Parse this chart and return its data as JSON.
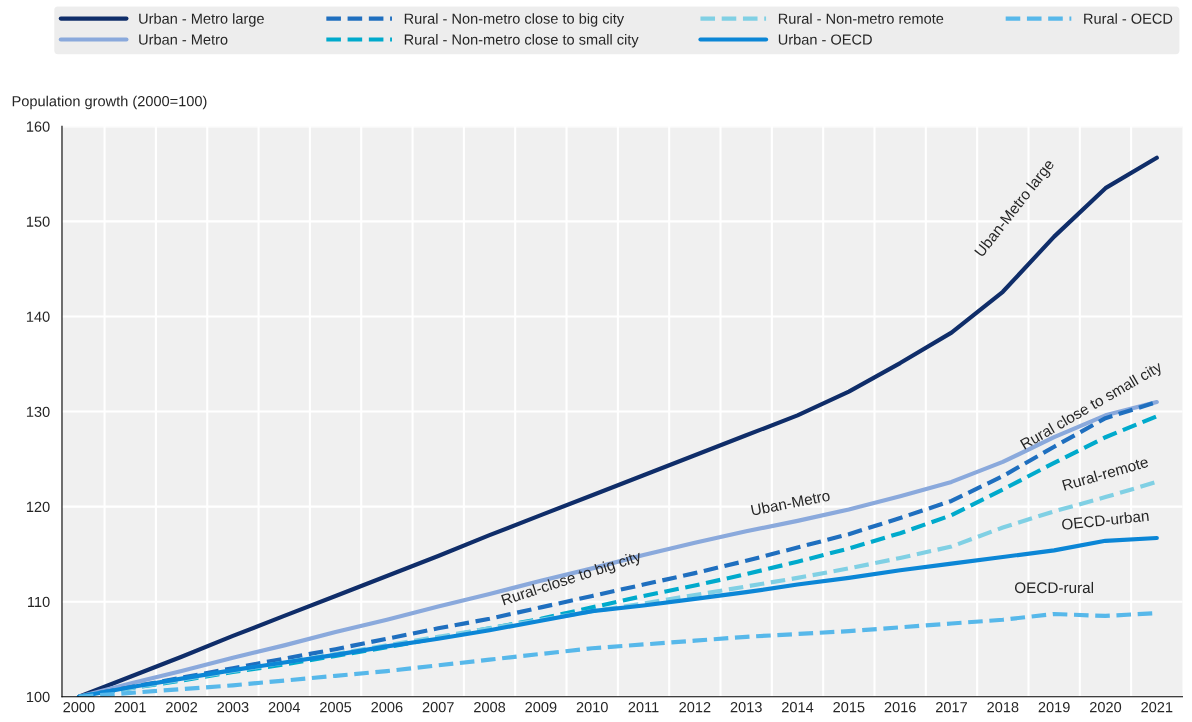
{
  "chart_data": {
    "type": "line",
    "ylabel": "Population growth (2000=100)",
    "categories": [
      "2000",
      "2001",
      "2002",
      "2003",
      "2004",
      "2005",
      "2006",
      "2007",
      "2008",
      "2009",
      "2010",
      "2011",
      "2012",
      "2013",
      "2014",
      "2015",
      "2016",
      "2017",
      "2018",
      "2019",
      "2020",
      "2021"
    ],
    "ylim": [
      100,
      160
    ],
    "yticks": [
      100,
      110,
      120,
      130,
      140,
      150,
      160
    ],
    "grid": true,
    "legend": "top",
    "marker": "none",
    "series": [
      {
        "name": "Urban - Metro large",
        "color": "#0f2d69",
        "line_style": "solid",
        "values": [
          100,
          102.1,
          104.2,
          106.4,
          108.5,
          110.6,
          112.7,
          114.8,
          117.0,
          119.1,
          121.2,
          123.3,
          125.4,
          127.5,
          129.6,
          132.1,
          135.1,
          138.3,
          142.6,
          148.4,
          153.5,
          156.7
        ]
      },
      {
        "name": "Urban - Metro",
        "color": "#8aa9dc",
        "line_style": "solid",
        "values": [
          100,
          101.4,
          102.7,
          104.1,
          105.4,
          106.8,
          108.1,
          109.5,
          110.8,
          112.2,
          113.5,
          114.9,
          116.2,
          117.4,
          118.5,
          119.7,
          121.1,
          122.6,
          124.7,
          127.3,
          129.6,
          131.0
        ]
      },
      {
        "name": "Rural - Non-metro close to big city",
        "color": "#1f6fbf",
        "line_style": "dashed",
        "values": [
          100,
          101.0,
          102.0,
          103.0,
          104.0,
          105.0,
          106.1,
          107.2,
          108.2,
          109.4,
          110.6,
          111.8,
          113.0,
          114.3,
          115.7,
          117.1,
          118.8,
          120.6,
          123.2,
          126.3,
          129.3,
          131.0
        ]
      },
      {
        "name": "Rural - Non-metro close to small city",
        "color": "#00aacc",
        "line_style": "dashed",
        "values": [
          100,
          100.9,
          101.7,
          102.6,
          103.4,
          104.3,
          105.2,
          106.2,
          107.2,
          108.2,
          109.4,
          110.6,
          111.7,
          112.9,
          114.2,
          115.6,
          117.2,
          119.1,
          121.8,
          124.6,
          127.3,
          129.5
        ]
      },
      {
        "name": "Rural - Non-metro remote",
        "color": "#80d0e4",
        "line_style": "dashed",
        "values": [
          100,
          100.9,
          101.8,
          102.7,
          103.6,
          104.5,
          105.4,
          106.3,
          107.2,
          108.1,
          109.0,
          109.8,
          110.7,
          111.6,
          112.5,
          113.5,
          114.6,
          115.8,
          117.8,
          119.5,
          121.0,
          122.6
        ]
      },
      {
        "name": "Urban - OECD",
        "color": "#0b86d6",
        "line_style": "solid",
        "values": [
          100,
          101.0,
          101.9,
          102.8,
          103.6,
          104.4,
          105.3,
          106.1,
          107.0,
          108.0,
          109.0,
          109.6,
          110.3,
          111.0,
          111.8,
          112.5,
          113.3,
          114.0,
          114.7,
          115.4,
          116.4,
          116.7
        ]
      },
      {
        "name": "Rural - OECD",
        "color": "#57b8ea",
        "line_style": "dashed",
        "values": [
          100,
          100.4,
          100.8,
          101.2,
          101.7,
          102.2,
          102.7,
          103.3,
          103.9,
          104.5,
          105.1,
          105.5,
          105.9,
          106.3,
          106.6,
          106.9,
          107.3,
          107.7,
          108.1,
          108.7,
          108.5,
          108.8
        ]
      }
    ],
    "annotations": [
      {
        "text": "Uban-Metro large",
        "x": "2019",
        "y": 148.4
      },
      {
        "text": "Uban-Metro",
        "x": "2014",
        "y": 118.5
      },
      {
        "text": "Rural-close to big city",
        "x": "2010",
        "y": 110.6
      },
      {
        "text": "Rural close to small city",
        "x": "2020",
        "y": 127.3
      },
      {
        "text": "Rural-remote",
        "x": "2020",
        "y": 121.0
      },
      {
        "text": "OECD-urban",
        "x": "2020",
        "y": 116.4
      },
      {
        "text": "OECD-rural",
        "x": "2019",
        "y": 108.7
      }
    ]
  }
}
